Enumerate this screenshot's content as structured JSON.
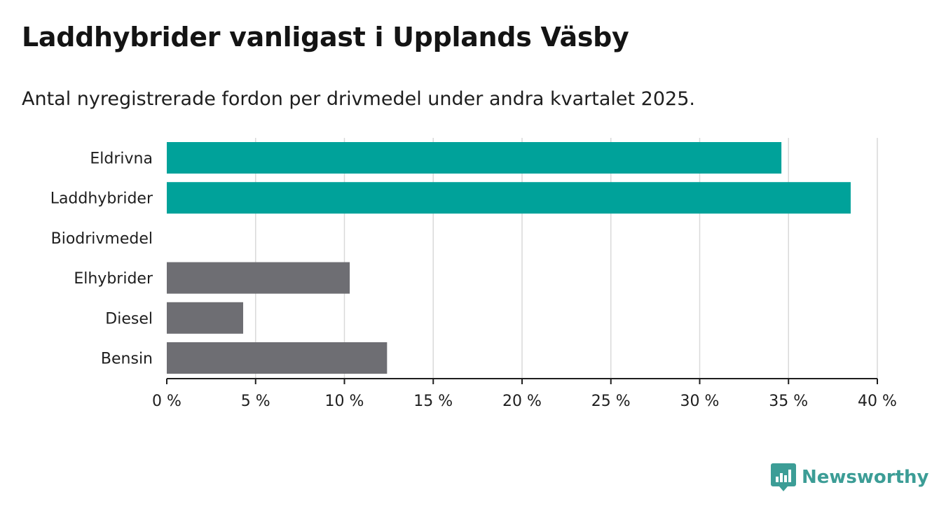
{
  "header": {
    "title": "Laddhybrider vanligast i Upplands Väsby",
    "subtitle": "Antal nyregistrerade fordon per drivmedel under andra kvartalet 2025."
  },
  "chart_data": {
    "type": "bar",
    "orientation": "horizontal",
    "categories": [
      "Eldrivna",
      "Laddhybrider",
      "Biodrivmedel",
      "Elhybrider",
      "Diesel",
      "Bensin"
    ],
    "values": [
      34.6,
      38.5,
      0,
      10.3,
      4.3,
      12.4
    ],
    "bar_colors": [
      "#00a29a",
      "#00a29a",
      "#6e6e73",
      "#6e6e73",
      "#6e6e73",
      "#6e6e73"
    ],
    "xlim": [
      0,
      40
    ],
    "x_ticks": [
      0,
      5,
      10,
      15,
      20,
      25,
      30,
      35,
      40
    ],
    "x_tick_labels": [
      "0 %",
      "5 %",
      "10 %",
      "15 %",
      "20 %",
      "25 %",
      "30 %",
      "35 %",
      "40 %"
    ],
    "grid": "vertical",
    "xlabel": "",
    "ylabel": ""
  },
  "brand": {
    "name": "Newsworthy",
    "icon": "newsworthy-logo-icon",
    "color": "#3c9d96"
  }
}
